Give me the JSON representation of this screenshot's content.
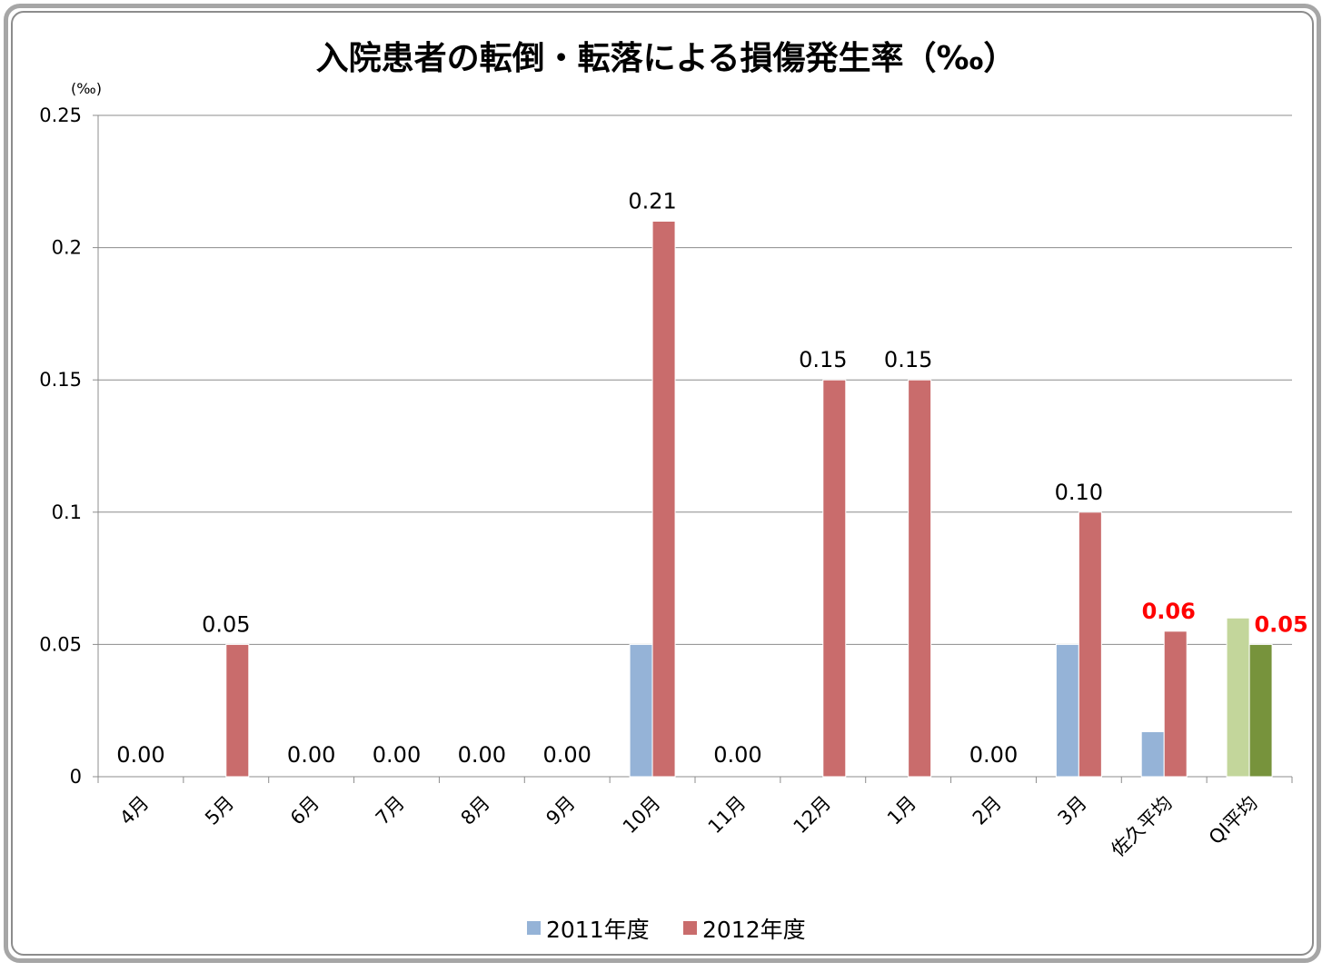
{
  "chart_data": {
    "type": "bar",
    "title": "入院患者の転倒・転落による損傷発生率（‰）",
    "unit_label": "(‰)",
    "ylim": [
      0,
      0.25
    ],
    "yticks": [
      "0",
      "0.05",
      "0.1",
      "0.15",
      "0.2",
      "0.25"
    ],
    "ytick_values": [
      0,
      0.05,
      0.1,
      0.15,
      0.2,
      0.25
    ],
    "grid": true,
    "legend_position": "bottom",
    "categories": [
      "4月",
      "5月",
      "6月",
      "7月",
      "8月",
      "9月",
      "10月",
      "11月",
      "12月",
      "1月",
      "2月",
      "3月",
      "佐久平均",
      "QI平均"
    ],
    "series": [
      {
        "name": "2011年度",
        "color": "#95b3d7",
        "values": [
          0,
          0,
          0,
          0,
          0,
          0,
          0.05,
          0,
          0,
          0,
          0,
          0.05,
          0.017,
          null
        ]
      },
      {
        "name": "2012年度",
        "color": "#c96c6c",
        "values": [
          0,
          0.05,
          0,
          0,
          0,
          0,
          0.21,
          0,
          0.15,
          0.15,
          0,
          0.1,
          0.055,
          null
        ]
      }
    ],
    "qi_average": {
      "category": "QI平均",
      "values": [
        0.06,
        0.05
      ],
      "colors": [
        "#c3d69b",
        "#77933c"
      ]
    },
    "data_labels": [
      "0.00",
      "0.05",
      "0.00",
      "0.00",
      "0.00",
      "0.00",
      "0.21",
      "0.00",
      "0.15",
      "0.15",
      "0.00",
      "0.10",
      "0.06",
      "0.05"
    ],
    "highlight_label_color": "#ff0000"
  }
}
